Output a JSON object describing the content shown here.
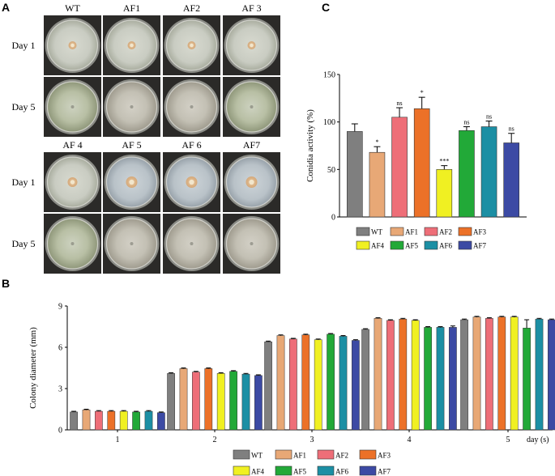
{
  "panel_a": {
    "label": "A",
    "top_columns": [
      "WT",
      "AF1",
      "AF2",
      "AF 3"
    ],
    "bottom_columns": [
      "AF 4",
      "AF 5",
      "AF 6",
      "AF7"
    ],
    "row_labels": [
      "Day 1",
      "Day 5",
      "Day 1",
      "Day 5"
    ]
  },
  "panel_b": {
    "label": "B"
  },
  "panel_c": {
    "label": "C"
  },
  "colors": {
    "WT": "#7f7f7f",
    "AF1": "#e8a876",
    "AF2": "#ee6e78",
    "AF3": "#ec7128",
    "AF4": "#f0f022",
    "AF5": "#22a938",
    "AF6": "#1c8fa4",
    "AF7": "#3c4aa4"
  },
  "chart_data": [
    {
      "type": "bar",
      "panel": "C",
      "categories": [
        "WT",
        "AF1",
        "AF2",
        "AF3",
        "AF4",
        "AF5",
        "AF6",
        "AF7"
      ],
      "values": [
        90,
        68,
        105,
        114,
        50,
        91,
        95,
        78
      ],
      "errors": [
        8,
        6,
        10,
        12,
        4,
        4,
        6,
        10
      ],
      "significance": [
        "",
        "*",
        "ns",
        "*",
        "***",
        "ns",
        "ns",
        "ns"
      ],
      "title": "",
      "xlabel": "",
      "ylabel": "Conidia activity (%)",
      "ylim": [
        0,
        150
      ],
      "yticks": [
        0,
        50,
        100,
        150
      ],
      "legend": [
        "WT",
        "AF1",
        "AF2",
        "AF3",
        "AF4",
        "AF5",
        "AF6",
        "AF7"
      ],
      "legend_position": "bottom"
    },
    {
      "type": "bar",
      "panel": "B",
      "categories": [
        "1",
        "2",
        "3",
        "4",
        "5"
      ],
      "series": [
        {
          "name": "WT",
          "values": [
            1.3,
            4.1,
            6.4,
            7.3,
            8.0
          ],
          "errors": [
            0.05,
            0.05,
            0.05,
            0.05,
            0.05
          ]
        },
        {
          "name": "AF1",
          "values": [
            1.45,
            4.45,
            6.85,
            8.1,
            8.2
          ],
          "errors": [
            0.05,
            0.05,
            0.05,
            0.05,
            0.05
          ]
        },
        {
          "name": "AF2",
          "values": [
            1.35,
            4.2,
            6.6,
            7.95,
            8.1
          ],
          "errors": [
            0.05,
            0.05,
            0.05,
            0.05,
            0.05
          ]
        },
        {
          "name": "AF3",
          "values": [
            1.35,
            4.45,
            6.9,
            8.05,
            8.2
          ],
          "errors": [
            0.05,
            0.05,
            0.05,
            0.05,
            0.05
          ]
        },
        {
          "name": "AF4",
          "values": [
            1.35,
            4.1,
            6.55,
            7.95,
            8.2
          ],
          "errors": [
            0.05,
            0.05,
            0.05,
            0.05,
            0.05
          ]
        },
        {
          "name": "AF5",
          "values": [
            1.3,
            4.25,
            6.95,
            7.45,
            7.4
          ],
          "errors": [
            0.05,
            0.05,
            0.05,
            0.05,
            0.6
          ]
        },
        {
          "name": "AF6",
          "values": [
            1.35,
            4.05,
            6.8,
            7.45,
            8.05
          ],
          "errors": [
            0.05,
            0.05,
            0.05,
            0.05,
            0.05
          ]
        },
        {
          "name": "AF7",
          "values": [
            1.25,
            3.95,
            6.5,
            7.45,
            8.0
          ],
          "errors": [
            0.05,
            0.05,
            0.05,
            0.1,
            0.05
          ]
        }
      ],
      "title": "",
      "xlabel": "day (s)",
      "ylabel": "Colony diameter (mm)",
      "ylim": [
        0,
        9
      ],
      "yticks": [
        0,
        3,
        6,
        9
      ],
      "legend": [
        "WT",
        "AF1",
        "AF2",
        "AF3",
        "AF4",
        "AF5",
        "AF6",
        "AF7"
      ],
      "legend_position": "bottom"
    }
  ]
}
